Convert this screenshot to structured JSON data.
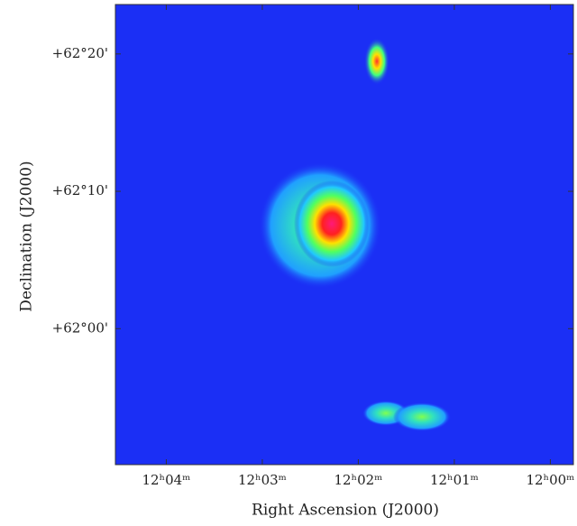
{
  "chart_data": {
    "type": "image",
    "xlabel": "Right Ascension (J2000)",
    "ylabel": "Declination (J2000)",
    "xlim": [
      724.53,
      719.76
    ],
    "xticks": [
      {
        "value": 724,
        "label": "12ʰ04ᵐ"
      },
      {
        "value": 723,
        "label": "12ʰ03ᵐ"
      },
      {
        "value": 722,
        "label": "12ʰ02ᵐ"
      },
      {
        "value": 721,
        "label": "12ʰ01ᵐ"
      },
      {
        "value": 720,
        "label": "12ʰ00ᵐ"
      }
    ],
    "ylim": [
      3710.1,
      3743.6
    ],
    "yticks": [
      {
        "value": 3740,
        "label": "+62°20'"
      },
      {
        "value": 3730,
        "label": "+62°10'"
      },
      {
        "value": 3720,
        "label": "+62°00'"
      }
    ],
    "color": "#1b2ff5"
  }
}
